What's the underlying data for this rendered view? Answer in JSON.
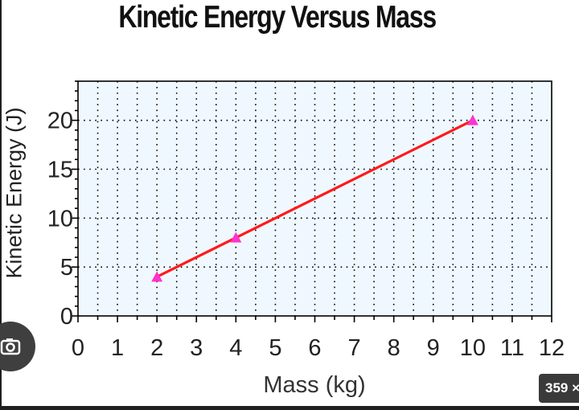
{
  "chart_data": {
    "type": "line",
    "title": "Kinetic Energy Versus Mass",
    "xlabel": "Mass (kg)",
    "ylabel": "Kinetic Energy (J)",
    "xlim": [
      0,
      12
    ],
    "ylim": [
      0,
      24
    ],
    "x_ticks": [
      "0",
      "1",
      "2",
      "3",
      "4",
      "5",
      "6",
      "7",
      "8",
      "9",
      "10",
      "11",
      "12"
    ],
    "y_ticks": [
      "0",
      "5",
      "10",
      "15",
      "20"
    ],
    "grid": true,
    "series": [
      {
        "x": [
          2,
          4,
          10
        ],
        "y": [
          4,
          8,
          20
        ],
        "line_color": "#ff1a1a",
        "marker_color": "#ff33cc",
        "marker": "triangle"
      }
    ]
  },
  "overlay": {
    "badge_text": "359 ×"
  },
  "colors": {
    "plot_background": "#f0f8ff",
    "axis": "#000000",
    "grid": "#000000"
  }
}
